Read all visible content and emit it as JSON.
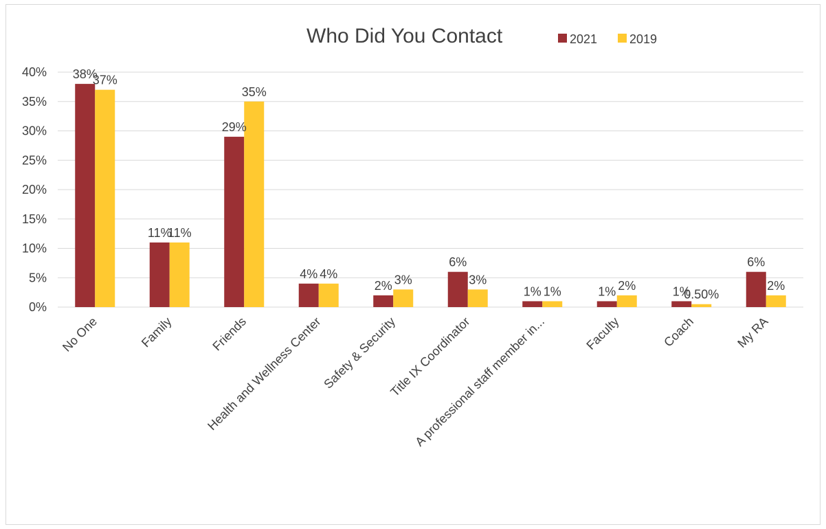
{
  "chart_data": {
    "type": "bar",
    "title": "Who Did You Contact",
    "categories": [
      "No One",
      "Family",
      "Friends",
      "Health and Wellness Center",
      "Safety & Security",
      "Title IX Coordinator",
      "A professional staff member in...",
      "Faculty",
      "Coach",
      "My RA"
    ],
    "series": [
      {
        "name": "2021",
        "color": "#9b3034",
        "values": [
          38,
          11,
          29,
          4,
          2,
          6,
          1,
          1,
          1,
          6
        ],
        "labels": [
          "38%",
          "11%",
          "29%",
          "4%",
          "2%",
          "6%",
          "1%",
          "1%",
          "1%",
          "6%"
        ]
      },
      {
        "name": "2019",
        "color": "#ffc930",
        "values": [
          37,
          11,
          35,
          4,
          3,
          3,
          1,
          2,
          0.5,
          2
        ],
        "labels": [
          "37%",
          "11%",
          "35%",
          "4%",
          "3%",
          "3%",
          "1%",
          "2%",
          "0.50%",
          "2%"
        ]
      }
    ],
    "y_ticks": [
      "0%",
      "5%",
      "10%",
      "15%",
      "20%",
      "25%",
      "30%",
      "35%",
      "40%"
    ],
    "ylim": [
      0,
      40
    ],
    "grid": true,
    "legend": "top-right"
  }
}
